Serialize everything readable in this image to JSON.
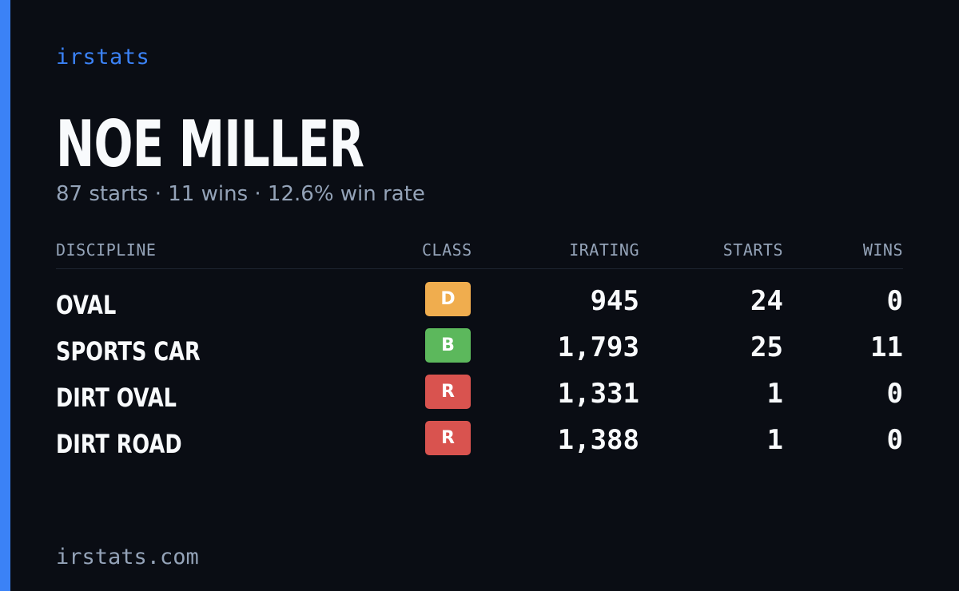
{
  "brand": "irstats",
  "driver": {
    "name": "NOE MILLER",
    "starts_text": "87 starts",
    "wins_text": "11 wins",
    "win_rate_text": "12.6% win rate",
    "separator": "·"
  },
  "table": {
    "headers": {
      "discipline": "DISCIPLINE",
      "class": "CLASS",
      "irating": "IRATING",
      "starts": "STARTS",
      "wins": "WINS"
    },
    "rows": [
      {
        "discipline": "OVAL",
        "class": "D",
        "class_color": "#f0ad4e",
        "irating": "945",
        "starts": "24",
        "wins": "0"
      },
      {
        "discipline": "SPORTS CAR",
        "class": "B",
        "class_color": "#5cb85c",
        "irating": "1,793",
        "starts": "25",
        "wins": "11"
      },
      {
        "discipline": "DIRT OVAL",
        "class": "R",
        "class_color": "#d9534f",
        "irating": "1,331",
        "starts": "1",
        "wins": "0"
      },
      {
        "discipline": "DIRT ROAD",
        "class": "R",
        "class_color": "#d9534f",
        "irating": "1,388",
        "starts": "1",
        "wins": "0"
      }
    ]
  },
  "footer": "irstats.com",
  "colors": {
    "background": "#0a0d14",
    "accent": "#3b82f6",
    "muted_text": "#94a3b8",
    "text": "#f8fafc"
  }
}
